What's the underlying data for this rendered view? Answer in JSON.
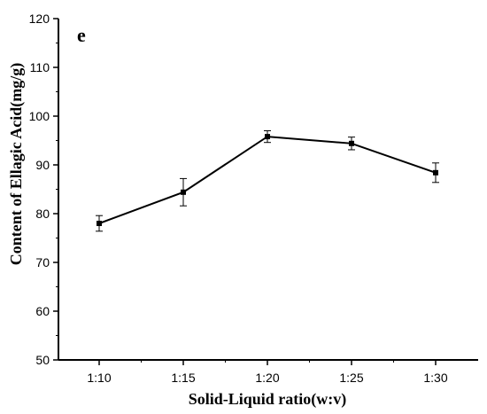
{
  "chart_data": {
    "type": "line",
    "panel_label": "e",
    "xlabel": "Solid-Liquid ratio(w:v)",
    "ylabel": "Content of Ellagic Acid(mg/g)",
    "categories": [
      "1:10",
      "1:15",
      "1:20",
      "1:25",
      "1:30"
    ],
    "series": [
      {
        "values": [
          78.0,
          84.4,
          95.8,
          94.4,
          88.4
        ],
        "errors": [
          1.6,
          2.8,
          1.2,
          1.3,
          2.0
        ],
        "color": "#000000",
        "marker": "square"
      }
    ],
    "ylim": [
      50,
      120
    ],
    "yticks": [
      50,
      60,
      70,
      80,
      90,
      100,
      110,
      120
    ],
    "grid": false,
    "legend": "none"
  }
}
